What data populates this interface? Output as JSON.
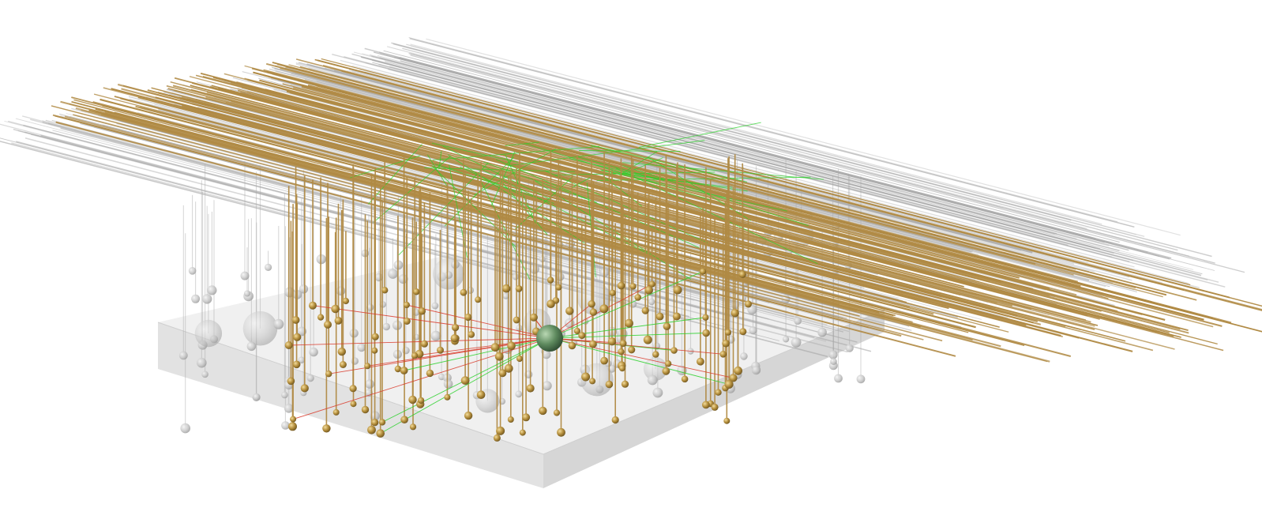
{
  "scene": {
    "background_color": "#ffffff",
    "slab_top_color": "#ededed",
    "slab_left_color": "#e2e2e2",
    "slab_front_color": "#dadada",
    "slab_edge_color": "#cfcfcf",
    "active_neuron_color": "#b08a44",
    "active_soma_color": "#b48e3c",
    "inactive_neuron_color": "#a9a9a9",
    "inactive_soma_color": "#c8c8c8",
    "target_cell_color": "#5e8a5e",
    "excitatory_connection_color": "#2ad12a",
    "inhibitory_connection_color": "#d93a2a",
    "view": "perspective-3d",
    "parallel_fiber_orientation": "horizontal-oblique"
  }
}
